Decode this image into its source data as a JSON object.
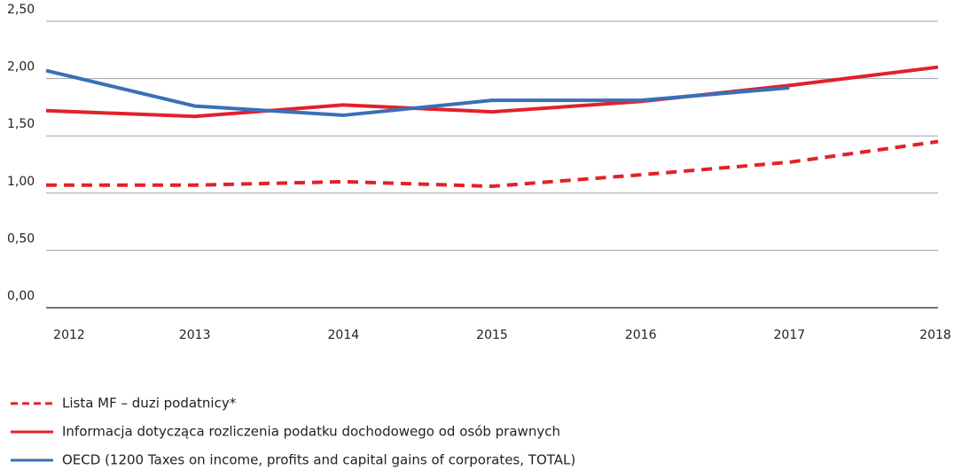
{
  "chart_data": {
    "type": "line",
    "categories": [
      "2012",
      "2013",
      "2014",
      "2015",
      "2016",
      "2017",
      "2018"
    ],
    "series": [
      {
        "name": "Lista MF – duzi podatnicy*",
        "color": "#e3202a",
        "style": "dashed",
        "values": [
          1.07,
          1.07,
          1.1,
          1.06,
          1.16,
          1.27,
          1.45
        ]
      },
      {
        "name": "Informacja dotycząca rozliczenia podatku dochodowego od osób prawnych",
        "color": "#e3202a",
        "style": "solid",
        "values": [
          1.72,
          1.67,
          1.77,
          1.71,
          1.8,
          1.94,
          2.1
        ]
      },
      {
        "name": "OECD (1200 Taxes on income, profits and capital gains of corporates, TOTAL)",
        "color": "#3a6fb8",
        "style": "solid",
        "values": [
          2.07,
          1.76,
          1.68,
          1.81,
          1.81,
          1.92,
          null
        ]
      }
    ],
    "ylim": [
      0,
      2.5
    ],
    "yticks": [
      {
        "value": 0,
        "label": "0,00"
      },
      {
        "value": 0.5,
        "label": "0,50"
      },
      {
        "value": 1,
        "label": "1,00"
      },
      {
        "value": 1.5,
        "label": "1,50"
      },
      {
        "value": 2,
        "label": "2,00"
      },
      {
        "value": 2.5,
        "label": "2,50"
      }
    ],
    "grid": true,
    "legend": "bottom"
  }
}
